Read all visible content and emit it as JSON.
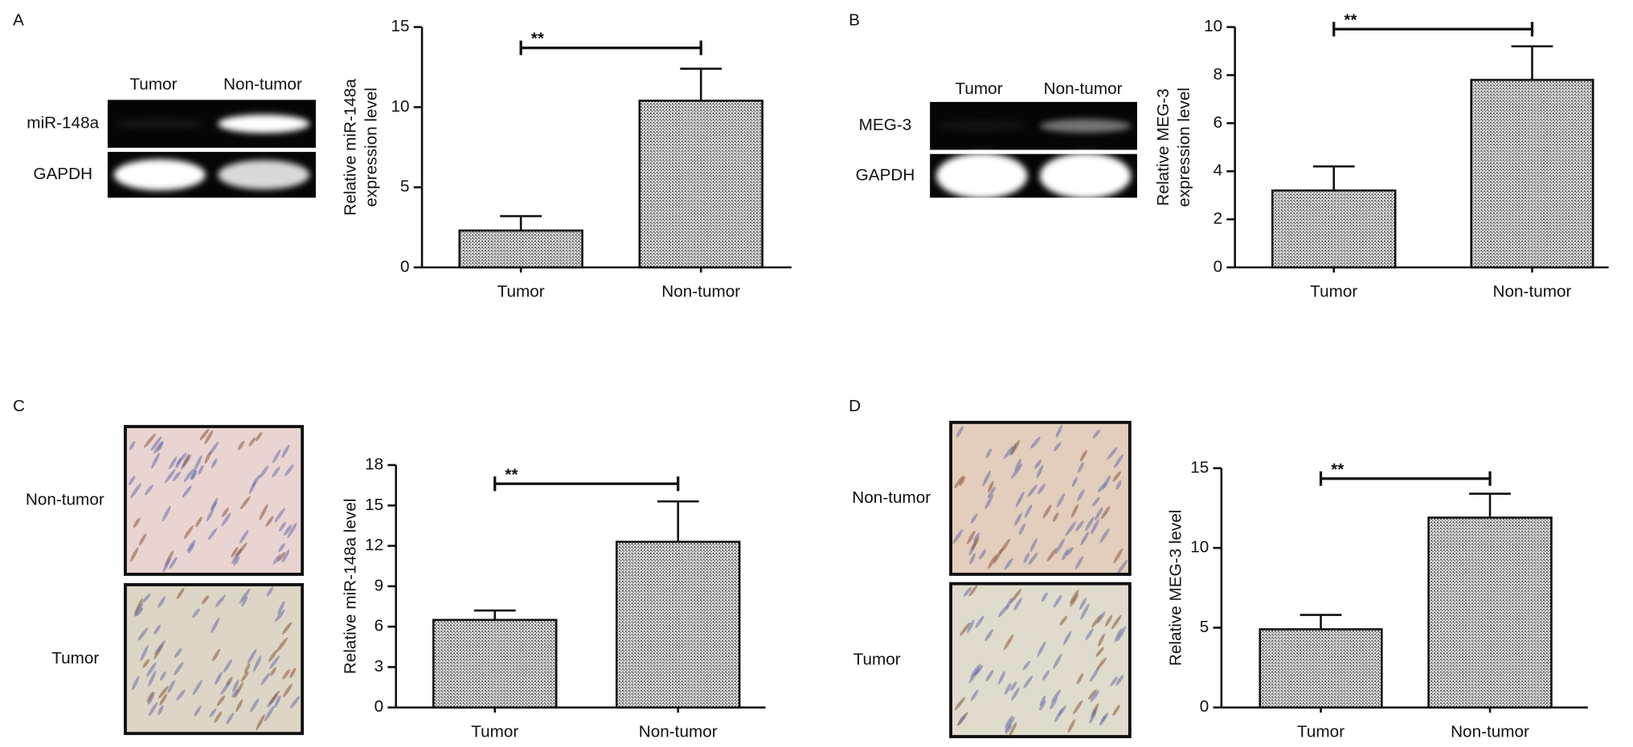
{
  "chart_data": [
    {
      "type": "bar",
      "panel": "A",
      "categories": [
        "Tumor",
        "Non-tumor"
      ],
      "values": [
        2.3,
        10.4
      ],
      "errors": [
        0.9,
        2.0
      ],
      "color": "#555555",
      "ylim": [
        0,
        15
      ],
      "yticks": [
        0,
        5,
        10,
        15
      ],
      "ylabel": [
        "Relative miR-148a",
        "expression level"
      ],
      "annotation": "**",
      "blot": {
        "columns": [
          "Tumor",
          "Non-tumor"
        ],
        "rows": [
          "miR-148a",
          "GAPDH"
        ]
      }
    },
    {
      "type": "bar",
      "panel": "B",
      "categories": [
        "Tumor",
        "Non-tumor"
      ],
      "values": [
        3.2,
        7.8
      ],
      "errors": [
        1.0,
        1.4
      ],
      "color": "#555555",
      "ylim": [
        0,
        10
      ],
      "yticks": [
        0,
        2,
        4,
        6,
        8,
        10
      ],
      "ylabel": [
        "Relative MEG-3",
        "expression level"
      ],
      "annotation": "**",
      "blot": {
        "columns": [
          "Tumor",
          "Non-tumor"
        ],
        "rows": [
          "MEG-3",
          "GAPDH"
        ]
      }
    },
    {
      "type": "bar",
      "panel": "C",
      "categories": [
        "Tumor",
        "Non-tumor"
      ],
      "values": [
        6.5,
        12.3
      ],
      "errors": [
        0.7,
        3.0
      ],
      "color": "#555555",
      "ylim": [
        0,
        18
      ],
      "yticks": [
        0,
        3,
        6,
        9,
        12,
        15,
        18
      ],
      "ylabel": [
        "Relative miR-148a level"
      ],
      "annotation": "**",
      "images": {
        "rows": [
          "Non-tumor",
          "Tumor"
        ]
      }
    },
    {
      "type": "bar",
      "panel": "D",
      "categories": [
        "Tumor",
        "Non-tumor"
      ],
      "values": [
        4.9,
        11.9
      ],
      "errors": [
        0.9,
        1.5
      ],
      "color": "#555555",
      "ylim": [
        0,
        15
      ],
      "yticks": [
        0,
        5,
        10,
        15
      ],
      "ylabel": [
        "Relative MEG-3 level"
      ],
      "annotation": "**",
      "images": {
        "rows": [
          "Non-tumor",
          "Tumor"
        ]
      }
    }
  ]
}
